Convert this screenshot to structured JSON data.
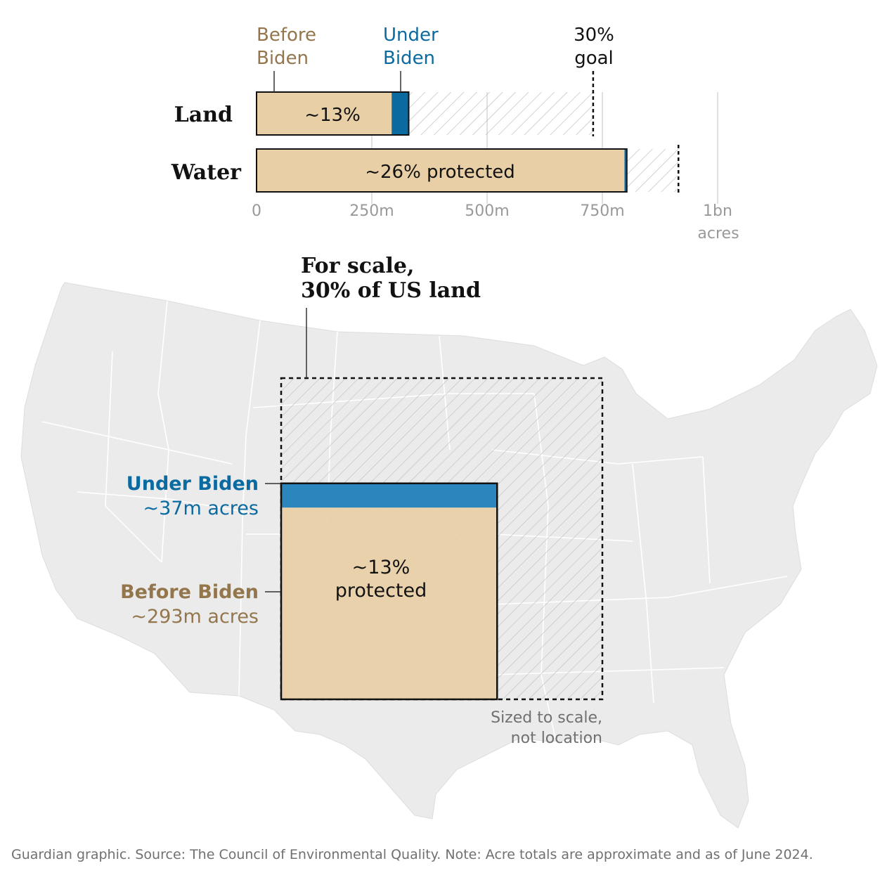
{
  "colors": {
    "before": "#e8cfa6",
    "before_text": "#94764d",
    "under": "#0b6aa0",
    "under_text": "#0b6aa0",
    "under_map": "#2b86bd",
    "goal_line": "#111111",
    "grid": "#cccccc",
    "map_fill": "#ebebeb",
    "map_border": "#ffffff",
    "axis_text": "#999999",
    "hatch": "#bbbbbb"
  },
  "chart_data": [
    {
      "type": "bar",
      "orientation": "horizontal",
      "stacked": true,
      "categories": [
        "Land",
        "Water"
      ],
      "series": [
        {
          "name": "Before Biden",
          "values": [
            293,
            798
          ]
        },
        {
          "name": "Under Biden",
          "values": [
            37,
            5
          ]
        }
      ],
      "goal": {
        "label_line1": "30%",
        "label_line2": "goal",
        "values": [
          730,
          915
        ]
      },
      "bar_labels": [
        "~13%",
        "~26% protected"
      ],
      "legend_before": [
        "Before",
        "Biden"
      ],
      "legend_under": [
        "Under",
        "Biden"
      ],
      "xlim": [
        0,
        1000
      ],
      "x_ticks": [
        0,
        250,
        500,
        750,
        1000
      ],
      "x_tick_labels": [
        "0",
        "250m",
        "500m",
        "750m",
        "1bn"
      ],
      "x_unit": "acres",
      "grid": true
    },
    {
      "type": "area-squares",
      "title_lines": [
        "For scale,",
        "30% of US land"
      ],
      "goal_acres": 730,
      "before_acres": 293,
      "under_acres": 37,
      "under_label": "Under Biden",
      "under_value": "~37m acres",
      "before_label": "Before Biden",
      "before_value": "~293m acres",
      "center_label": [
        "~13%",
        "protected"
      ],
      "note_lines": [
        "Sized to scale,",
        "not location"
      ]
    }
  ],
  "footer": "Guardian graphic. Source: The Council of Environmental Quality. Note: Acre totals are approximate and as of June 2024."
}
